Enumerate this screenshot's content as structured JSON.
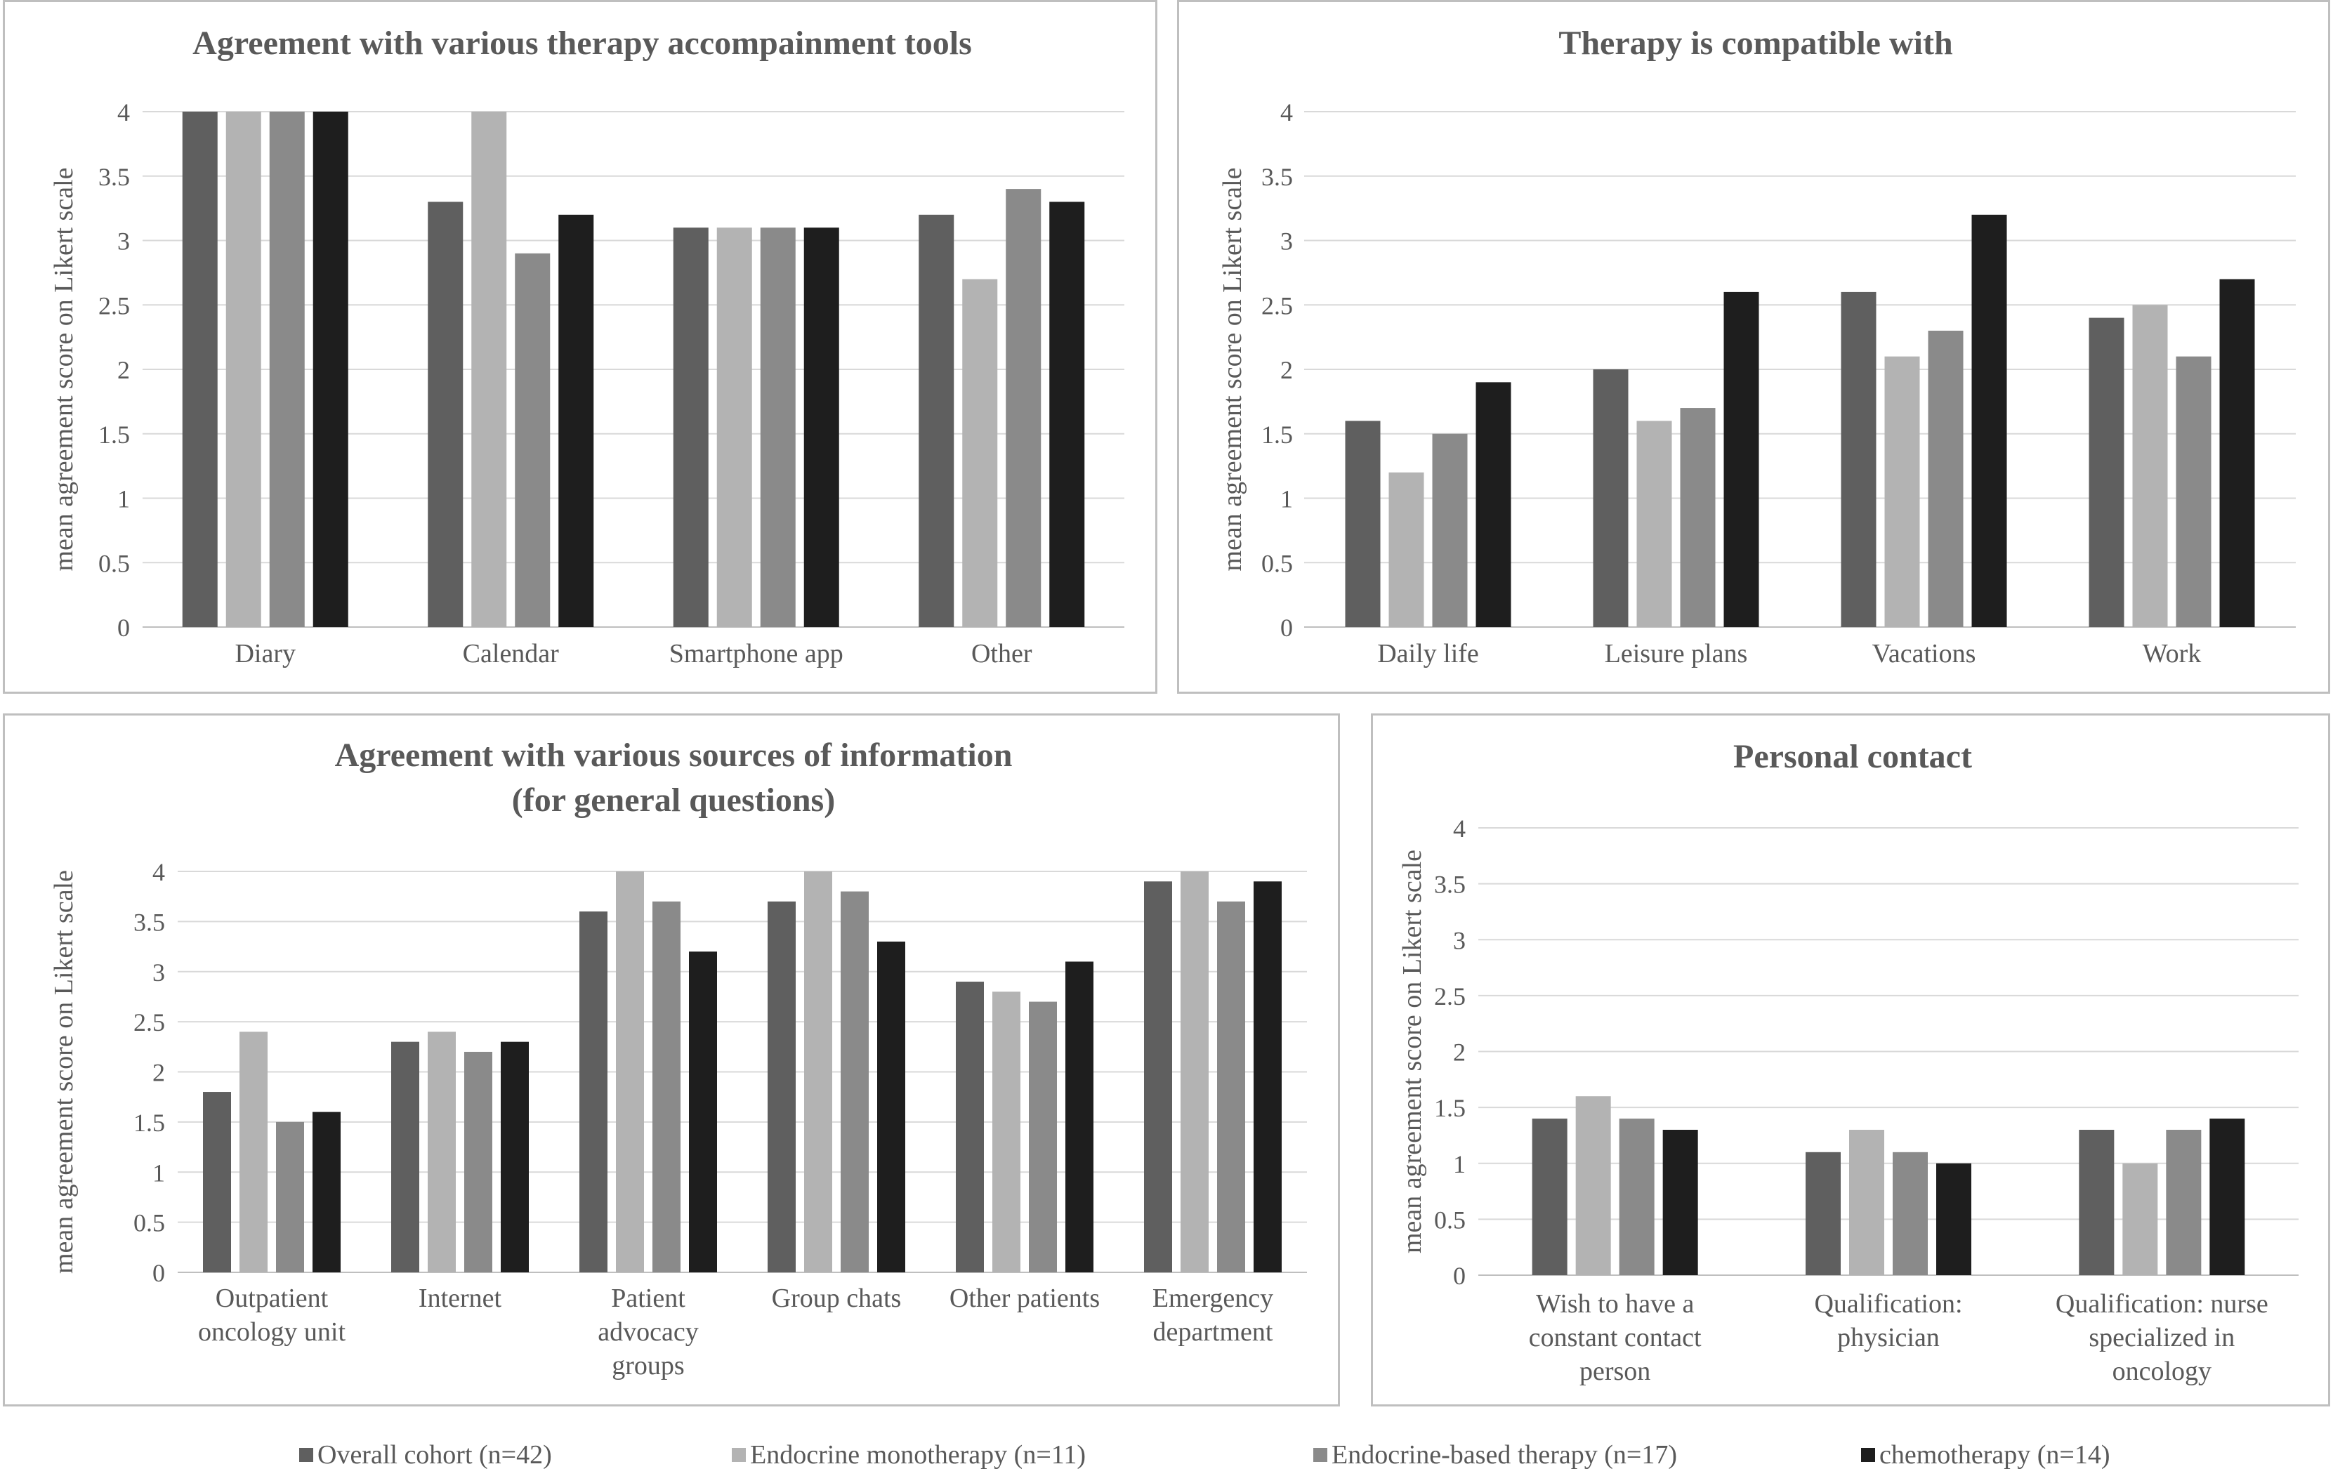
{
  "legend": [
    {
      "name": "Overall cohort (n=42)",
      "color": "#5f5f5f"
    },
    {
      "name": "Endocrine monotherapy (n=11)",
      "color": "#b3b3b3"
    },
    {
      "name": "Endocrine-based therapy (n=17)",
      "color": "#8a8a8a"
    },
    {
      "name": "chemotherapy (n=14)",
      "color": "#1e1e1e"
    }
  ],
  "chart_data": [
    {
      "type": "bar",
      "title": [
        "Agreement with various therapy accompainment tools"
      ],
      "ylabel": "mean agreement score on Likert scale",
      "xlabel": "",
      "ylim": [
        0,
        4
      ],
      "yticks": [
        "0",
        "0.5",
        "1",
        "1.5",
        "2",
        "2.5",
        "3",
        "3.5",
        "4"
      ],
      "grid": true,
      "categories": [
        [
          "Diary"
        ],
        [
          "Calendar"
        ],
        [
          "Smartphone app"
        ],
        [
          "Other"
        ]
      ],
      "series": [
        {
          "name": "Overall cohort (n=42)",
          "values": [
            4,
            3.3,
            3.1,
            3.2
          ]
        },
        {
          "name": "Endocrine monotherapy (n=11)",
          "values": [
            4,
            4,
            3.1,
            2.7
          ]
        },
        {
          "name": "Endocrine-based therapy (n=17)",
          "values": [
            4,
            2.9,
            3.1,
            3.4
          ]
        },
        {
          "name": "chemotherapy (n=14)",
          "values": [
            4,
            3.2,
            3.1,
            3.3
          ]
        }
      ]
    },
    {
      "type": "bar",
      "title": [
        "Therapy is compatible with"
      ],
      "ylabel": "mean agreement score on Likert scale",
      "xlabel": "",
      "ylim": [
        0,
        4
      ],
      "yticks": [
        "0",
        "0.5",
        "1",
        "1.5",
        "2",
        "2.5",
        "3",
        "3.5",
        "4"
      ],
      "grid": true,
      "categories": [
        [
          "Daily life"
        ],
        [
          "Leisure plans"
        ],
        [
          "Vacations"
        ],
        [
          "Work"
        ]
      ],
      "series": [
        {
          "name": "Overall cohort (n=42)",
          "values": [
            1.6,
            2.0,
            2.6,
            2.4
          ]
        },
        {
          "name": "Endocrine monotherapy (n=11)",
          "values": [
            1.2,
            1.6,
            2.1,
            2.5
          ]
        },
        {
          "name": "Endocrine-based therapy (n=17)",
          "values": [
            1.5,
            1.7,
            2.3,
            2.1
          ]
        },
        {
          "name": "chemotherapy (n=14)",
          "values": [
            1.9,
            2.6,
            3.2,
            2.7
          ]
        }
      ]
    },
    {
      "type": "bar",
      "title": [
        "Agreement with various sources of information",
        "(for general questions)"
      ],
      "ylabel": "mean agreement score on Likert scale",
      "xlabel": "",
      "ylim": [
        0,
        4
      ],
      "yticks": [
        "0",
        "0.5",
        "1",
        "1.5",
        "2",
        "2.5",
        "3",
        "3.5",
        "4"
      ],
      "grid": true,
      "categories": [
        [
          "Outpatient",
          "oncology unit"
        ],
        [
          "Internet"
        ],
        [
          "Patient",
          "advocacy",
          "groups"
        ],
        [
          "Group chats"
        ],
        [
          "Other patients"
        ],
        [
          "Emergency",
          "department"
        ]
      ],
      "series": [
        {
          "name": "Overall cohort (n=42)",
          "values": [
            1.8,
            2.3,
            3.6,
            3.7,
            2.9,
            3.9
          ]
        },
        {
          "name": "Endocrine monotherapy (n=11)",
          "values": [
            2.4,
            2.4,
            4.0,
            4.0,
            2.8,
            4.0
          ]
        },
        {
          "name": "Endocrine-based therapy (n=17)",
          "values": [
            1.5,
            2.2,
            3.7,
            3.8,
            2.7,
            3.7
          ]
        },
        {
          "name": "chemotherapy (n=14)",
          "values": [
            1.6,
            2.3,
            3.2,
            3.3,
            3.1,
            3.9
          ]
        }
      ]
    },
    {
      "type": "bar",
      "title": [
        "Personal contact"
      ],
      "ylabel": "mean agreement score on Likert scale",
      "xlabel": "",
      "ylim": [
        0,
        4
      ],
      "yticks": [
        "0",
        "0.5",
        "1",
        "1.5",
        "2",
        "2.5",
        "3",
        "3.5",
        "4"
      ],
      "grid": true,
      "categories": [
        [
          "Wish to have a",
          "constant contact",
          "person"
        ],
        [
          "Qualification:",
          "physician"
        ],
        [
          "Qualification: nurse",
          "specialized in",
          "oncology"
        ]
      ],
      "series": [
        {
          "name": "Overall cohort (n=42)",
          "values": [
            1.4,
            1.1,
            1.3
          ]
        },
        {
          "name": "Endocrine monotherapy (n=11)",
          "values": [
            1.6,
            1.3,
            1.0
          ]
        },
        {
          "name": "Endocrine-based therapy (n=17)",
          "values": [
            1.4,
            1.1,
            1.3
          ]
        },
        {
          "name": "chemotherapy (n=14)",
          "values": [
            1.3,
            1.0,
            1.4
          ]
        }
      ]
    }
  ]
}
